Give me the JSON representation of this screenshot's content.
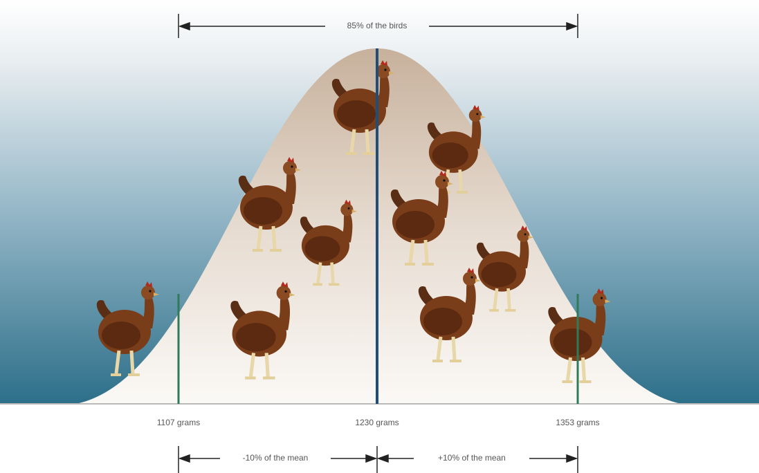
{
  "top_label": "85% of the birds",
  "weights": [
    "1107 grams",
    "1230 grams",
    "1353 grams"
  ],
  "bottom_labels": [
    "-10% of the mean",
    "+10% of the mean"
  ]
}
